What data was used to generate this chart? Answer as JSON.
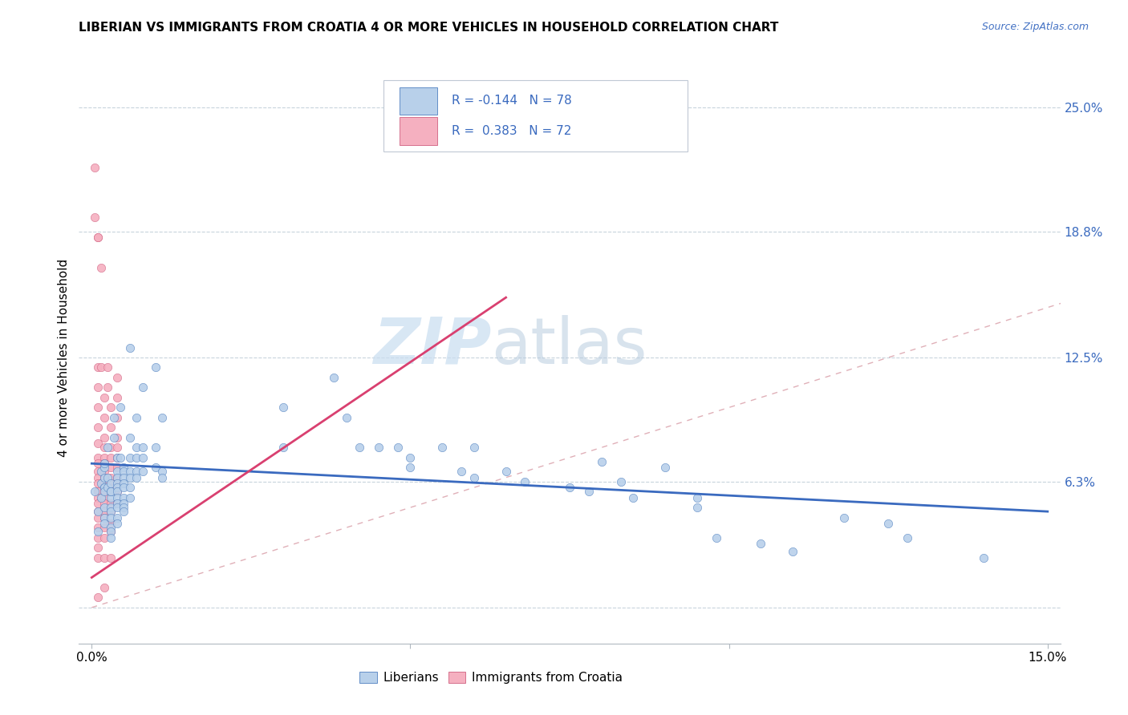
{
  "title": "LIBERIAN VS IMMIGRANTS FROM CROATIA 4 OR MORE VEHICLES IN HOUSEHOLD CORRELATION CHART",
  "source": "Source: ZipAtlas.com",
  "ylabel": "4 or more Vehicles in Household",
  "xlim": [
    -0.002,
    0.152
  ],
  "ylim": [
    -0.018,
    0.268
  ],
  "ytick_positions": [
    0.063,
    0.125,
    0.188,
    0.25
  ],
  "ytick_labels": [
    "6.3%",
    "12.5%",
    "18.8%",
    "25.0%"
  ],
  "blue_color": "#b8d0ea",
  "pink_color": "#f5b0c0",
  "blue_line_color": "#3a6abf",
  "pink_line_color": "#d94070",
  "diagonal_color": "#e0b0b8",
  "watermark_zip": "ZIP",
  "watermark_atlas": "atlas",
  "legend_label_blue": "Liberians",
  "legend_label_pink": "Immigrants from Croatia",
  "blue_line": [
    [
      0.0,
      0.072
    ],
    [
      0.15,
      0.048
    ]
  ],
  "pink_line": [
    [
      0.0,
      0.015
    ],
    [
      0.065,
      0.155
    ]
  ],
  "diagonal_line": [
    [
      0.0,
      0.0
    ],
    [
      0.268,
      0.268
    ]
  ],
  "blue_scatter": [
    [
      0.0005,
      0.058
    ],
    [
      0.001,
      0.048
    ],
    [
      0.001,
      0.038
    ],
    [
      0.0015,
      0.055
    ],
    [
      0.0015,
      0.062
    ],
    [
      0.0015,
      0.068
    ],
    [
      0.002,
      0.06
    ],
    [
      0.002,
      0.07
    ],
    [
      0.002,
      0.072
    ],
    [
      0.002,
      0.065
    ],
    [
      0.002,
      0.06
    ],
    [
      0.002,
      0.058
    ],
    [
      0.002,
      0.05
    ],
    [
      0.002,
      0.045
    ],
    [
      0.002,
      0.042
    ],
    [
      0.0025,
      0.08
    ],
    [
      0.0025,
      0.065
    ],
    [
      0.0025,
      0.06
    ],
    [
      0.003,
      0.055
    ],
    [
      0.003,
      0.058
    ],
    [
      0.003,
      0.058
    ],
    [
      0.003,
      0.05
    ],
    [
      0.003,
      0.048
    ],
    [
      0.003,
      0.045
    ],
    [
      0.003,
      0.04
    ],
    [
      0.003,
      0.038
    ],
    [
      0.003,
      0.035
    ],
    [
      0.003,
      0.062
    ],
    [
      0.0035,
      0.095
    ],
    [
      0.0035,
      0.085
    ],
    [
      0.004,
      0.075
    ],
    [
      0.004,
      0.068
    ],
    [
      0.004,
      0.065
    ],
    [
      0.004,
      0.062
    ],
    [
      0.004,
      0.06
    ],
    [
      0.004,
      0.058
    ],
    [
      0.004,
      0.055
    ],
    [
      0.004,
      0.052
    ],
    [
      0.004,
      0.05
    ],
    [
      0.004,
      0.045
    ],
    [
      0.004,
      0.042
    ],
    [
      0.0045,
      0.1
    ],
    [
      0.0045,
      0.075
    ],
    [
      0.005,
      0.07
    ],
    [
      0.005,
      0.068
    ],
    [
      0.005,
      0.065
    ],
    [
      0.005,
      0.062
    ],
    [
      0.005,
      0.06
    ],
    [
      0.005,
      0.055
    ],
    [
      0.005,
      0.052
    ],
    [
      0.005,
      0.05
    ],
    [
      0.005,
      0.048
    ],
    [
      0.006,
      0.13
    ],
    [
      0.006,
      0.085
    ],
    [
      0.006,
      0.075
    ],
    [
      0.006,
      0.068
    ],
    [
      0.006,
      0.065
    ],
    [
      0.006,
      0.06
    ],
    [
      0.006,
      0.055
    ],
    [
      0.007,
      0.095
    ],
    [
      0.007,
      0.08
    ],
    [
      0.007,
      0.075
    ],
    [
      0.007,
      0.068
    ],
    [
      0.007,
      0.065
    ],
    [
      0.008,
      0.11
    ],
    [
      0.008,
      0.08
    ],
    [
      0.008,
      0.075
    ],
    [
      0.008,
      0.068
    ],
    [
      0.01,
      0.12
    ],
    [
      0.01,
      0.08
    ],
    [
      0.01,
      0.07
    ],
    [
      0.011,
      0.095
    ],
    [
      0.011,
      0.068
    ],
    [
      0.011,
      0.065
    ],
    [
      0.03,
      0.1
    ],
    [
      0.03,
      0.08
    ],
    [
      0.038,
      0.115
    ],
    [
      0.04,
      0.095
    ],
    [
      0.042,
      0.08
    ],
    [
      0.045,
      0.08
    ],
    [
      0.048,
      0.08
    ],
    [
      0.05,
      0.075
    ],
    [
      0.05,
      0.07
    ],
    [
      0.055,
      0.08
    ],
    [
      0.058,
      0.068
    ],
    [
      0.06,
      0.08
    ],
    [
      0.06,
      0.065
    ],
    [
      0.065,
      0.068
    ],
    [
      0.068,
      0.063
    ],
    [
      0.075,
      0.06
    ],
    [
      0.078,
      0.058
    ],
    [
      0.08,
      0.073
    ],
    [
      0.083,
      0.063
    ],
    [
      0.085,
      0.055
    ],
    [
      0.09,
      0.07
    ],
    [
      0.095,
      0.055
    ],
    [
      0.095,
      0.05
    ],
    [
      0.098,
      0.035
    ],
    [
      0.105,
      0.032
    ],
    [
      0.11,
      0.028
    ],
    [
      0.118,
      0.045
    ],
    [
      0.125,
      0.042
    ],
    [
      0.128,
      0.035
    ],
    [
      0.14,
      0.025
    ]
  ],
  "pink_scatter": [
    [
      0.0005,
      0.22
    ],
    [
      0.0005,
      0.195
    ],
    [
      0.001,
      0.185
    ],
    [
      0.001,
      0.185
    ],
    [
      0.001,
      0.12
    ],
    [
      0.001,
      0.11
    ],
    [
      0.001,
      0.1
    ],
    [
      0.001,
      0.09
    ],
    [
      0.001,
      0.082
    ],
    [
      0.001,
      0.075
    ],
    [
      0.001,
      0.072
    ],
    [
      0.001,
      0.068
    ],
    [
      0.001,
      0.065
    ],
    [
      0.001,
      0.062
    ],
    [
      0.001,
      0.058
    ],
    [
      0.001,
      0.055
    ],
    [
      0.001,
      0.052
    ],
    [
      0.001,
      0.048
    ],
    [
      0.001,
      0.045
    ],
    [
      0.001,
      0.04
    ],
    [
      0.001,
      0.035
    ],
    [
      0.001,
      0.03
    ],
    [
      0.001,
      0.025
    ],
    [
      0.001,
      0.005
    ],
    [
      0.0015,
      0.17
    ],
    [
      0.0015,
      0.12
    ],
    [
      0.002,
      0.105
    ],
    [
      0.002,
      0.095
    ],
    [
      0.002,
      0.085
    ],
    [
      0.002,
      0.08
    ],
    [
      0.002,
      0.075
    ],
    [
      0.002,
      0.072
    ],
    [
      0.002,
      0.068
    ],
    [
      0.002,
      0.065
    ],
    [
      0.002,
      0.062
    ],
    [
      0.002,
      0.058
    ],
    [
      0.002,
      0.055
    ],
    [
      0.002,
      0.052
    ],
    [
      0.002,
      0.048
    ],
    [
      0.002,
      0.045
    ],
    [
      0.002,
      0.04
    ],
    [
      0.002,
      0.035
    ],
    [
      0.002,
      0.025
    ],
    [
      0.002,
      0.01
    ],
    [
      0.0025,
      0.12
    ],
    [
      0.0025,
      0.11
    ],
    [
      0.003,
      0.1
    ],
    [
      0.003,
      0.09
    ],
    [
      0.003,
      0.08
    ],
    [
      0.003,
      0.075
    ],
    [
      0.003,
      0.07
    ],
    [
      0.003,
      0.065
    ],
    [
      0.003,
      0.06
    ],
    [
      0.003,
      0.058
    ],
    [
      0.003,
      0.052
    ],
    [
      0.003,
      0.048
    ],
    [
      0.003,
      0.042
    ],
    [
      0.003,
      0.038
    ],
    [
      0.003,
      0.025
    ],
    [
      0.004,
      0.115
    ],
    [
      0.004,
      0.105
    ],
    [
      0.004,
      0.095
    ],
    [
      0.004,
      0.085
    ],
    [
      0.004,
      0.08
    ],
    [
      0.004,
      0.075
    ],
    [
      0.004,
      0.07
    ],
    [
      0.004,
      0.065
    ],
    [
      0.004,
      0.062
    ],
    [
      0.004,
      0.058
    ],
    [
      0.004,
      0.052
    ]
  ]
}
